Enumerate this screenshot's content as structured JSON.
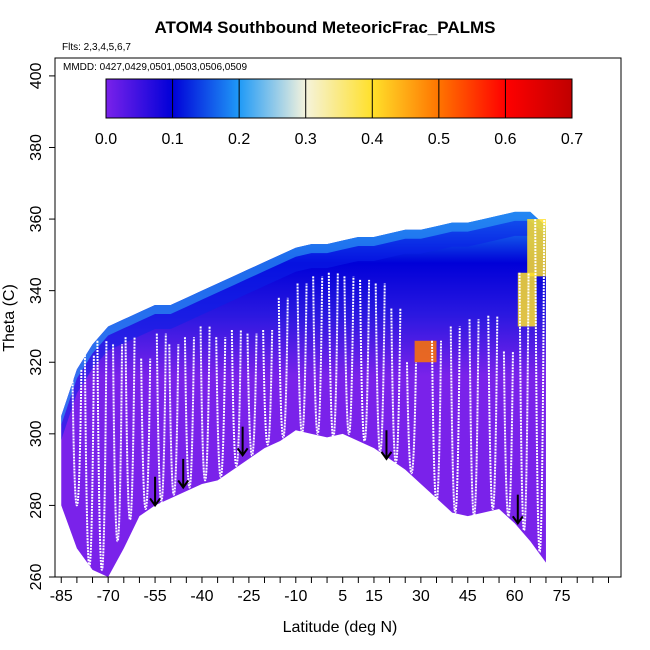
{
  "chart_data": {
    "type": "heatmap",
    "title": "ATOM4 Southbound MeteoricFrac_PALMS",
    "annotations": {
      "flights": "Flts: 2,3,4,5,6,7",
      "dates": "MMDD: 0427,0429,0501,0503,0506,0509"
    },
    "xlabel": "Latitude (deg N)",
    "ylabel": "Theta (C)",
    "xlim": [
      -87,
      94
    ],
    "ylim": [
      260,
      405
    ],
    "x_ticks": [
      "-85",
      "-70",
      "-55",
      "-40",
      "-25",
      "-10",
      "5",
      "15",
      "30",
      "45",
      "60",
      "75"
    ],
    "x_tick_values": [
      -85,
      -70,
      -55,
      -40,
      -25,
      -10,
      5,
      15,
      30,
      45,
      60,
      75
    ],
    "x_minor_ticks": [
      -80,
      -75,
      -65,
      -60,
      -50,
      -45,
      -35,
      -30,
      -20,
      -15,
      -5,
      0,
      10,
      20,
      25,
      35,
      40,
      50,
      55,
      65,
      70,
      80,
      85,
      90
    ],
    "y_ticks": [
      "260",
      "280",
      "300",
      "320",
      "340",
      "360",
      "380",
      "400"
    ],
    "y_tick_values": [
      260,
      280,
      300,
      320,
      340,
      360,
      380,
      400
    ],
    "colorbar": {
      "range": [
        0,
        0.7
      ],
      "ticks": [
        "0.0",
        "0.1",
        "0.2",
        "0.3",
        "0.4",
        "0.5",
        "0.6",
        "0.7"
      ],
      "tick_values": [
        0,
        0.1,
        0.2,
        0.3,
        0.4,
        0.5,
        0.6,
        0.7
      ],
      "colors": [
        "#7a22ea",
        "#0000d8",
        "#1f9af7",
        "#f5f3dc",
        "#ffe02a",
        "#ff7400",
        "#ff0000",
        "#c00000"
      ]
    },
    "lower_boundary": [
      {
        "x": -85,
        "y": 280
      },
      {
        "x": -80,
        "y": 268
      },
      {
        "x": -75,
        "y": 262
      },
      {
        "x": -70,
        "y": 260
      },
      {
        "x": -65,
        "y": 268
      },
      {
        "x": -60,
        "y": 277
      },
      {
        "x": -55,
        "y": 280
      },
      {
        "x": -50,
        "y": 282
      },
      {
        "x": -45,
        "y": 284
      },
      {
        "x": -40,
        "y": 286
      },
      {
        "x": -35,
        "y": 287
      },
      {
        "x": -30,
        "y": 290
      },
      {
        "x": -25,
        "y": 293
      },
      {
        "x": -20,
        "y": 296
      },
      {
        "x": -15,
        "y": 298
      },
      {
        "x": -10,
        "y": 301
      },
      {
        "x": -5,
        "y": 300
      },
      {
        "x": 0,
        "y": 299
      },
      {
        "x": 5,
        "y": 300
      },
      {
        "x": 10,
        "y": 298
      },
      {
        "x": 15,
        "y": 296
      },
      {
        "x": 20,
        "y": 293
      },
      {
        "x": 25,
        "y": 290
      },
      {
        "x": 30,
        "y": 286
      },
      {
        "x": 35,
        "y": 282
      },
      {
        "x": 40,
        "y": 278
      },
      {
        "x": 45,
        "y": 277
      },
      {
        "x": 50,
        "y": 278
      },
      {
        "x": 55,
        "y": 279
      },
      {
        "x": 60,
        "y": 275
      },
      {
        "x": 65,
        "y": 270
      },
      {
        "x": 70,
        "y": 264
      }
    ],
    "upper_boundary": [
      {
        "x": -85,
        "y": 305
      },
      {
        "x": -80,
        "y": 318
      },
      {
        "x": -75,
        "y": 325
      },
      {
        "x": -70,
        "y": 330
      },
      {
        "x": -65,
        "y": 332
      },
      {
        "x": -60,
        "y": 334
      },
      {
        "x": -55,
        "y": 336
      },
      {
        "x": -50,
        "y": 336
      },
      {
        "x": -45,
        "y": 338
      },
      {
        "x": -40,
        "y": 340
      },
      {
        "x": -35,
        "y": 342
      },
      {
        "x": -30,
        "y": 344
      },
      {
        "x": -25,
        "y": 346
      },
      {
        "x": -20,
        "y": 348
      },
      {
        "x": -15,
        "y": 350
      },
      {
        "x": -10,
        "y": 352
      },
      {
        "x": -5,
        "y": 353
      },
      {
        "x": 0,
        "y": 353
      },
      {
        "x": 5,
        "y": 354
      },
      {
        "x": 10,
        "y": 355
      },
      {
        "x": 15,
        "y": 355
      },
      {
        "x": 20,
        "y": 356
      },
      {
        "x": 25,
        "y": 357
      },
      {
        "x": 30,
        "y": 357
      },
      {
        "x": 35,
        "y": 358
      },
      {
        "x": 40,
        "y": 359
      },
      {
        "x": 45,
        "y": 359
      },
      {
        "x": 50,
        "y": 360
      },
      {
        "x": 55,
        "y": 361
      },
      {
        "x": 60,
        "y": 362
      },
      {
        "x": 65,
        "y": 362
      },
      {
        "x": 70,
        "y": 358
      }
    ],
    "high_value_regions": [
      {
        "x_range": [
          28,
          35
        ],
        "y_range": [
          320,
          326
        ],
        "value": 0.45
      },
      {
        "x_range": [
          61,
          67
        ],
        "y_range": [
          330,
          345
        ],
        "value": 0.4
      },
      {
        "x_range": [
          64,
          70
        ],
        "y_range": [
          344,
          360
        ],
        "value": 0.35
      }
    ],
    "flight_track_profiles": [
      {
        "lat": -80,
        "theta_min": 280,
        "theta_max": 318
      },
      {
        "lat": -76,
        "theta_min": 263,
        "theta_max": 322
      },
      {
        "lat": -72,
        "theta_min": 262,
        "theta_max": 326
      },
      {
        "lat": -67,
        "theta_min": 270,
        "theta_max": 325
      },
      {
        "lat": -63,
        "theta_min": 276,
        "theta_max": 327
      },
      {
        "lat": -58,
        "theta_min": 279,
        "theta_max": 321
      },
      {
        "lat": -53,
        "theta_min": 281,
        "theta_max": 328
      },
      {
        "lat": -49,
        "theta_min": 283,
        "theta_max": 325
      },
      {
        "lat": -44,
        "theta_min": 285,
        "theta_max": 327
      },
      {
        "lat": -39,
        "theta_min": 287,
        "theta_max": 330
      },
      {
        "lat": -34,
        "theta_min": 288,
        "theta_max": 327
      },
      {
        "lat": -29,
        "theta_min": 291,
        "theta_max": 329
      },
      {
        "lat": -24,
        "theta_min": 294,
        "theta_max": 328
      },
      {
        "lat": -19,
        "theta_min": 297,
        "theta_max": 329
      },
      {
        "lat": -14,
        "theta_min": 299,
        "theta_max": 338
      },
      {
        "lat": -8,
        "theta_min": 300,
        "theta_max": 342
      },
      {
        "lat": -3,
        "theta_min": 300,
        "theta_max": 344
      },
      {
        "lat": 2,
        "theta_min": 299,
        "theta_max": 345
      },
      {
        "lat": 7,
        "theta_min": 300,
        "theta_max": 344
      },
      {
        "lat": 12,
        "theta_min": 298,
        "theta_max": 343
      },
      {
        "lat": 17,
        "theta_min": 295,
        "theta_max": 342
      },
      {
        "lat": 22,
        "theta_min": 292,
        "theta_max": 335
      },
      {
        "lat": 27,
        "theta_min": 289,
        "theta_max": 320
      },
      {
        "lat": 35,
        "theta_min": 281,
        "theta_max": 326
      },
      {
        "lat": 41,
        "theta_min": 278,
        "theta_max": 330
      },
      {
        "lat": 47,
        "theta_min": 277,
        "theta_max": 332
      },
      {
        "lat": 53,
        "theta_min": 279,
        "theta_max": 333
      },
      {
        "lat": 58,
        "theta_min": 277,
        "theta_max": 323
      },
      {
        "lat": 63,
        "theta_min": 273,
        "theta_max": 345
      },
      {
        "lat": 68,
        "theta_min": 267,
        "theta_max": 360
      }
    ],
    "arrows": [
      {
        "x": -55,
        "y_from": 288,
        "y_to": 280
      },
      {
        "x": -46,
        "y_from": 293,
        "y_to": 285
      },
      {
        "x": -27,
        "y_from": 302,
        "y_to": 294
      },
      {
        "x": 19,
        "y_from": 301,
        "y_to": 293
      },
      {
        "x": 61,
        "y_from": 283,
        "y_to": 275
      }
    ],
    "grid": false,
    "legend": "colorbar top inside plot"
  }
}
